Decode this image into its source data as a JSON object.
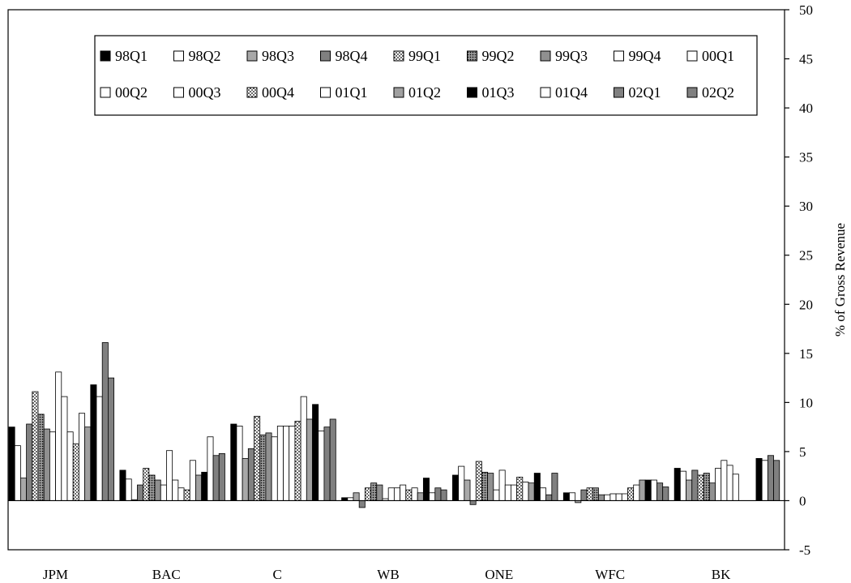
{
  "chart_data": {
    "type": "bar",
    "title": "",
    "xlabel": "",
    "ylabel": "% of Gross Revenue",
    "ylim": [
      -5,
      50
    ],
    "yticks": [
      -5,
      0,
      5,
      10,
      15,
      20,
      25,
      30,
      35,
      40,
      45,
      50
    ],
    "y_axis_side": "right",
    "grid": false,
    "legend_position": "top-center",
    "categories": [
      "JPM",
      "BAC",
      "C",
      "WB",
      "ONE",
      "WFC",
      "BK"
    ],
    "series": [
      {
        "name": "98Q1",
        "fill": "#000000",
        "values": [
          7.5,
          3.1,
          7.8,
          0.3,
          2.6,
          0.8,
          3.3
        ]
      },
      {
        "name": "98Q2",
        "fill": "#ffffff",
        "values": [
          5.6,
          2.2,
          7.6,
          0.3,
          3.5,
          0.8,
          3.0
        ]
      },
      {
        "name": "98Q3",
        "fill": "#ffffff",
        "values": [
          2.3,
          0.1,
          4.3,
          0.8,
          2.1,
          -0.2,
          2.1
        ]
      },
      {
        "name": "98Q4",
        "fill": "#ffffff",
        "values": [
          7.8,
          1.6,
          5.3,
          -0.7,
          -0.4,
          1.1,
          3.1
        ]
      },
      {
        "name": "99Q1",
        "fill": "#ffffff",
        "values": [
          11.1,
          3.3,
          8.6,
          1.3,
          4.0,
          1.3,
          2.6
        ]
      },
      {
        "name": "99Q2",
        "fill": "#ffffff",
        "values": [
          8.8,
          2.6,
          6.7,
          1.8,
          2.9,
          1.3,
          2.8
        ]
      },
      {
        "name": "99Q3",
        "fill": "#ffffff",
        "values": [
          7.3,
          2.1,
          6.9,
          1.6,
          2.8,
          0.6,
          1.8
        ]
      },
      {
        "name": "99Q4",
        "fill": "#ffffff",
        "values": [
          7.0,
          1.6,
          6.5,
          0.2,
          1.1,
          0.6,
          3.3
        ]
      },
      {
        "name": "00Q1",
        "fill": "#ffffff",
        "values": [
          13.1,
          5.1,
          7.6,
          1.3,
          3.1,
          0.7,
          4.1
        ]
      },
      {
        "name": "00Q2",
        "fill": "#ffffff",
        "values": [
          10.6,
          2.1,
          7.6,
          1.3,
          1.6,
          0.7,
          3.6
        ]
      },
      {
        "name": "00Q3",
        "fill": "#ffffff",
        "values": [
          7.0,
          1.3,
          7.6,
          1.6,
          1.6,
          0.7,
          2.7
        ]
      },
      {
        "name": "00Q4",
        "fill": "#ffffff",
        "values": [
          5.8,
          1.1,
          8.1,
          1.1,
          2.4,
          1.3,
          0.0
        ]
      },
      {
        "name": "01Q1",
        "fill": "#ffffff",
        "values": [
          8.9,
          4.1,
          10.6,
          1.3,
          1.9,
          1.6,
          0.0
        ]
      },
      {
        "name": "01Q2",
        "fill": "#ffffff",
        "values": [
          7.5,
          2.6,
          8.3,
          0.8,
          1.8,
          2.1,
          0.0
        ]
      },
      {
        "name": "01Q3",
        "fill": "#000000",
        "values": [
          11.8,
          2.9,
          9.8,
          2.3,
          2.8,
          2.1,
          4.3
        ]
      },
      {
        "name": "01Q4",
        "fill": "#ffffff",
        "values": [
          10.6,
          6.5,
          7.1,
          0.8,
          1.3,
          2.1,
          4.1
        ]
      },
      {
        "name": "02Q1",
        "fill": "#808080",
        "values": [
          16.1,
          4.6,
          7.5,
          1.3,
          0.6,
          1.8,
          4.6
        ]
      },
      {
        "name": "02Q2",
        "fill": "#808080",
        "values": [
          12.5,
          4.8,
          8.3,
          1.1,
          2.8,
          1.4,
          4.1
        ]
      }
    ],
    "bar_patterns": [
      {
        "name": "98Q1",
        "fill": "#000000",
        "pattern": "none"
      },
      {
        "name": "98Q2",
        "fill": "#ffffff",
        "pattern": "none"
      },
      {
        "name": "98Q3",
        "fill": "#a8a8a8",
        "pattern": "none"
      },
      {
        "name": "98Q4",
        "fill": "#808080",
        "pattern": "none"
      },
      {
        "name": "99Q1",
        "fill": "#ffffff",
        "pattern": "dots"
      },
      {
        "name": "99Q2",
        "fill": "#ffffff",
        "pattern": "dense-dots"
      },
      {
        "name": "99Q3",
        "fill": "#909090",
        "pattern": "none"
      },
      {
        "name": "99Q4",
        "fill": "#ffffff",
        "pattern": "none"
      },
      {
        "name": "00Q1",
        "fill": "#ffffff",
        "pattern": "none"
      },
      {
        "name": "00Q2",
        "fill": "#ffffff",
        "pattern": "none"
      },
      {
        "name": "00Q3",
        "fill": "#ffffff",
        "pattern": "none"
      },
      {
        "name": "00Q4",
        "fill": "#ffffff",
        "pattern": "dots"
      },
      {
        "name": "01Q1",
        "fill": "#ffffff",
        "pattern": "none"
      },
      {
        "name": "01Q2",
        "fill": "#a0a0a0",
        "pattern": "none"
      },
      {
        "name": "01Q3",
        "fill": "#000000",
        "pattern": "none"
      },
      {
        "name": "01Q4",
        "fill": "#ffffff",
        "pattern": "none"
      },
      {
        "name": "02Q1",
        "fill": "#808080",
        "pattern": "none"
      },
      {
        "name": "02Q2",
        "fill": "#808080",
        "pattern": "none"
      }
    ]
  }
}
